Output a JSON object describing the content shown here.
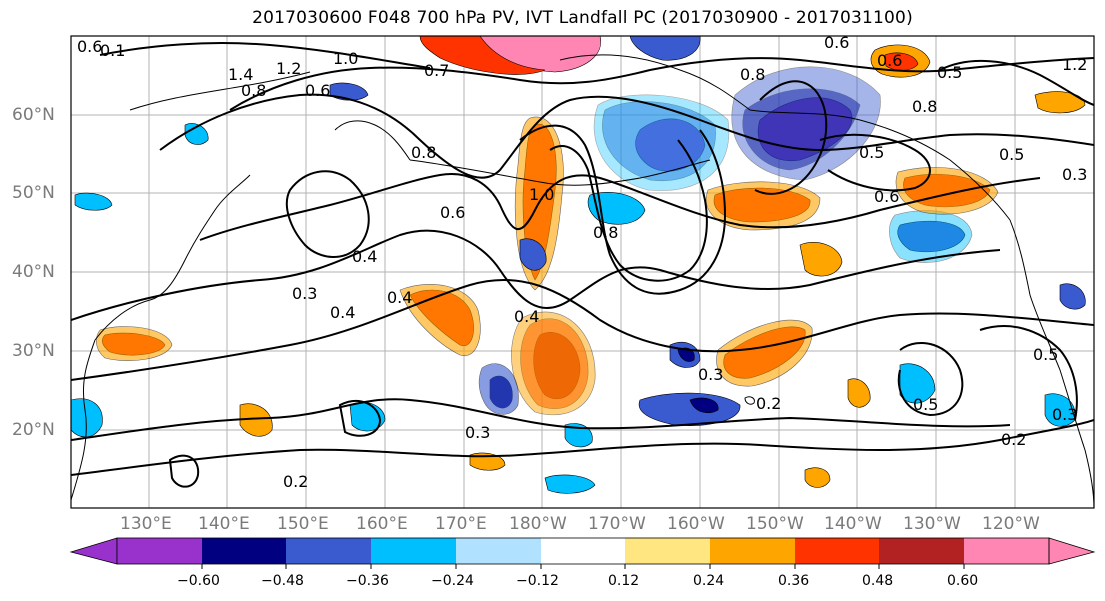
{
  "title": "2017030600 F048 700 hPa PV, IVT Landfall PC (2017030900 - 2017031100)",
  "lat_labels": [
    "60°N",
    "50°N",
    "40°N",
    "30°N",
    "20°N"
  ],
  "lon_labels": [
    "130°E",
    "140°E",
    "150°E",
    "160°E",
    "170°E",
    "180°W",
    "170°W",
    "160°W",
    "150°W",
    "140°W",
    "130°W",
    "120°W"
  ],
  "contour_labels": [
    "0.6",
    "0.1",
    "1.4",
    "1.2",
    "1.0",
    "0.8",
    "0.6",
    "0.7",
    "0.6",
    "0.8",
    "0.8",
    "0.5",
    "0.6",
    "0.5",
    "1.2",
    "1.0",
    "0.8",
    "0.6",
    "0.4",
    "0.5",
    "0.3",
    "0.3",
    "0.4",
    "0.4",
    "0.4",
    "0.3",
    "0.2",
    "0.3",
    "0.5",
    "0.2",
    "0.2",
    "0.3",
    "0.5",
    "0.6",
    "0.8"
  ],
  "colorbar": {
    "tick_labels": [
      "−0.60",
      "−0.48",
      "−0.36",
      "−0.24",
      "−0.12",
      "0.12",
      "0.24",
      "0.36",
      "0.48",
      "0.60"
    ],
    "colors": [
      "#9932cc",
      "#000080",
      "#3a5bd0",
      "#00bfff",
      "#b0e2ff",
      "#ffffff",
      "#ffe680",
      "#ffa500",
      "#ff3300",
      "#b22222",
      "#ff85b3"
    ]
  },
  "fill_colors": {
    "neg1": "#b0e2ff",
    "neg2": "#00bfff",
    "neg3": "#3a5bd0",
    "neg4": "#000080",
    "neg5": "#9932cc",
    "pos1": "#ffe680",
    "pos2": "#ffa500",
    "pos3": "#ff3300",
    "pos4": "#b22222",
    "pos5": "#ff85b3"
  }
}
